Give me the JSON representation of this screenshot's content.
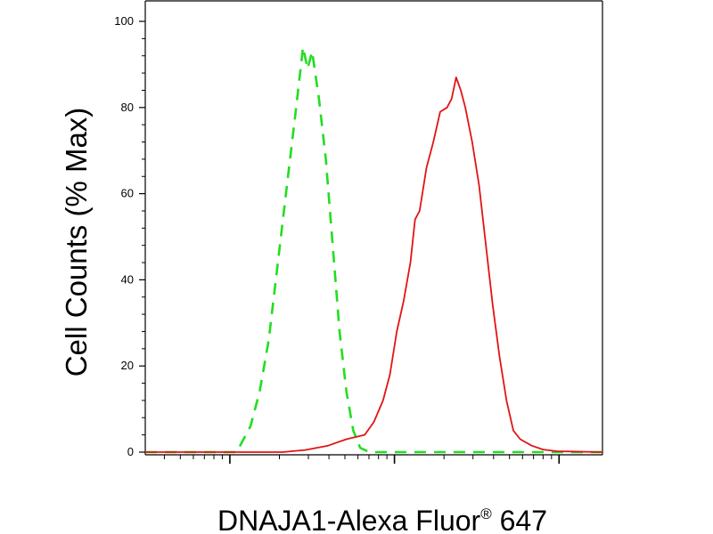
{
  "chart_data": {
    "type": "line",
    "title": "",
    "xlabel": "DNAJA1-Alexa Fluor",
    "xlabel_superscript": "®",
    "xlabel_suffix": " 647",
    "ylabel": "Cell Counts (% Max)",
    "ylim": [
      0,
      100
    ],
    "y_ticks": [
      0,
      20,
      40,
      60,
      80,
      100
    ],
    "x_scale": "log",
    "x_tick_labels": [],
    "grid": false,
    "legend": "none",
    "series": [
      {
        "color": "#22dd22",
        "style": "dashed",
        "points": [
          [
            0.0,
            0
          ],
          [
            0.2,
            0
          ],
          [
            0.21,
            2
          ],
          [
            0.23,
            6
          ],
          [
            0.25,
            14
          ],
          [
            0.27,
            26
          ],
          [
            0.29,
            44
          ],
          [
            0.31,
            62
          ],
          [
            0.33,
            80
          ],
          [
            0.345,
            94
          ],
          [
            0.355,
            89
          ],
          [
            0.365,
            93
          ],
          [
            0.38,
            82
          ],
          [
            0.395,
            68
          ],
          [
            0.41,
            48
          ],
          [
            0.425,
            28
          ],
          [
            0.44,
            14
          ],
          [
            0.455,
            5
          ],
          [
            0.47,
            1
          ],
          [
            0.49,
            0
          ],
          [
            1.0,
            0
          ]
        ]
      },
      {
        "color": "#e01414",
        "style": "solid",
        "points": [
          [
            0.0,
            0
          ],
          [
            0.3,
            0
          ],
          [
            0.35,
            0.5
          ],
          [
            0.4,
            1.5
          ],
          [
            0.44,
            3
          ],
          [
            0.48,
            4
          ],
          [
            0.5,
            7
          ],
          [
            0.52,
            12
          ],
          [
            0.535,
            18
          ],
          [
            0.55,
            28
          ],
          [
            0.565,
            35
          ],
          [
            0.58,
            44
          ],
          [
            0.59,
            54
          ],
          [
            0.6,
            56
          ],
          [
            0.615,
            66
          ],
          [
            0.63,
            72
          ],
          [
            0.645,
            79
          ],
          [
            0.66,
            80
          ],
          [
            0.67,
            82
          ],
          [
            0.68,
            87
          ],
          [
            0.69,
            84
          ],
          [
            0.7,
            80
          ],
          [
            0.715,
            72
          ],
          [
            0.73,
            62
          ],
          [
            0.745,
            48
          ],
          [
            0.76,
            34
          ],
          [
            0.775,
            22
          ],
          [
            0.79,
            12
          ],
          [
            0.805,
            5
          ],
          [
            0.82,
            3
          ],
          [
            0.845,
            1.5
          ],
          [
            0.87,
            0.6
          ],
          [
            0.9,
            0.2
          ],
          [
            1.0,
            0
          ]
        ]
      }
    ]
  }
}
